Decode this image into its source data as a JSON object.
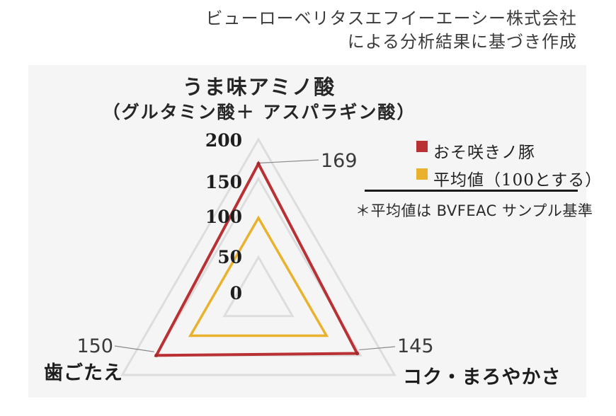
{
  "header": {
    "line1": "ビューローベリタスエフイーエーシー株式会社",
    "line2": "による分析結果に基づき作成"
  },
  "chart_data": {
    "type": "radar",
    "title": "うま味アミノ酸",
    "subtitle": "（グルタミン酸＋ アスパラギン酸）",
    "axes": [
      "うま味アミノ酸（グルタミン酸＋アスパラギン酸）",
      "歯ごたえ",
      "コク・まろやかさ"
    ],
    "scale_ticks": [
      200,
      150,
      100,
      50,
      0
    ],
    "scale_max": 200,
    "grid_levels": [
      50,
      100,
      150,
      200
    ],
    "grid_on": true,
    "series": [
      {
        "name": "おそ咲きノ豚",
        "color": "#b93134",
        "values": [
          169,
          150,
          145
        ]
      },
      {
        "name": "平均値（100とする）",
        "color": "#eab22c",
        "values": [
          100,
          100,
          100
        ]
      }
    ],
    "legend_position": "right",
    "footnote": "＊平均値は BVFEAC サンプル基準"
  },
  "colors": {
    "panel_bg": "#f5f5f5",
    "grid": "#dddddd",
    "series_red": "#b93134",
    "series_yellow": "#eab22c",
    "leader_line": "#8a8a8a",
    "divider": "#1a1a1a"
  }
}
